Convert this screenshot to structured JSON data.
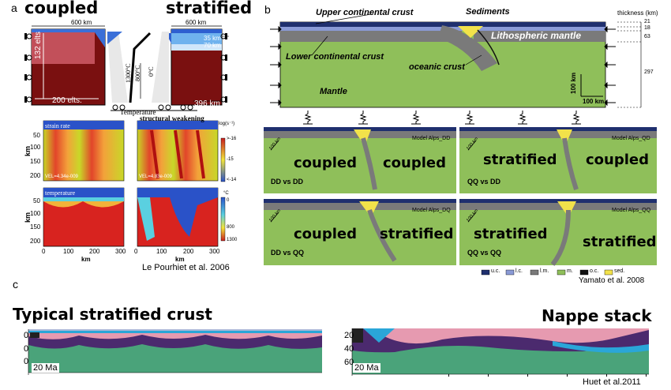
{
  "panel_a": {
    "letter": "a",
    "title_left": "coupled",
    "title_right": "stratified",
    "dim_600_left": "600 km",
    "dim_600_right": "600 km",
    "dim_35": "35 km",
    "dim_70": "70 km",
    "dim_132": "132 elts",
    "dim_200elts": "200 elts.",
    "dim_396": "396 km",
    "temps": [
      "1300°C",
      "800°C",
      "0°C"
    ],
    "temperature_label": "Temperature",
    "strain_rate_label": "strain rate",
    "temperature_field_label": "temperature",
    "structural_weakening": "structural weakening",
    "vel_left": "VEL=4.34e-009",
    "vel_right": "VEL=4.83e-009",
    "cb1_ticks": [
      ">-16",
      "-15",
      "<-14"
    ],
    "cb1_unit": "log(s⁻¹)",
    "cb2_unit": "°C",
    "cb2_ticks": [
      "0",
      "800",
      "1300"
    ],
    "y_axis_label": "km",
    "y_ticks": [
      "50",
      "100",
      "150",
      "200"
    ],
    "x_ticks": [
      "0",
      "100",
      "200",
      "300"
    ],
    "x_label": "km",
    "citation": "Le Pourhiet et al. 2006"
  },
  "panel_b": {
    "letter": "b",
    "labels": {
      "upper_crust": "Upper continental crust",
      "sediments": "Sediments",
      "lith_mantle": "Lithospheric mantle",
      "lower_crust": "Lower continental crust",
      "oceanic_crust": "oceanic crust",
      "mantle": "Mantle"
    },
    "thickness_label": "thickness (km)",
    "thickness_values": [
      "21",
      "18",
      "63",
      "297"
    ],
    "scale_v": "100 km",
    "scale_h": "100 km",
    "tiles": [
      {
        "left": "coupled",
        "right": "coupled",
        "sub": "DD vs DD",
        "model": "Model Alps_DD"
      },
      {
        "left": "stratified",
        "right": "coupled",
        "sub": "QQ vs DD",
        "model": "Model Alps_QD"
      },
      {
        "left": "coupled",
        "right": "stratified",
        "sub": "DD vs QQ",
        "model": "Model Alps_DQ"
      },
      {
        "left": "stratified",
        "right": "stratified",
        "sub": "QQ vs QQ",
        "model": "Model Alps_QQ"
      }
    ],
    "tile_scale": "100 km",
    "legend": [
      {
        "label": "u.c.",
        "color": "#1f2f6e"
      },
      {
        "label": "l.c.",
        "color": "#8a9ad6"
      },
      {
        "label": "l.m.",
        "color": "#7a7a7a"
      },
      {
        "label": "m.",
        "color": "#8fbf5a"
      },
      {
        "label": "o.c.",
        "color": "#111111"
      },
      {
        "label": "sed.",
        "color": "#f2e24a"
      }
    ],
    "citation": "Yamato et al. 2008"
  },
  "panel_c": {
    "letter": "c",
    "left_title": "Typical stratified crust",
    "right_title": "Nappe stack",
    "left_time": "20 Ma",
    "right_time": "20 Ma",
    "left_y_ticks": [
      "0",
      "0",
      "0"
    ],
    "right_y_ticks": [
      "20",
      "40",
      "60"
    ],
    "citation": "Huet et al.2011"
  }
}
